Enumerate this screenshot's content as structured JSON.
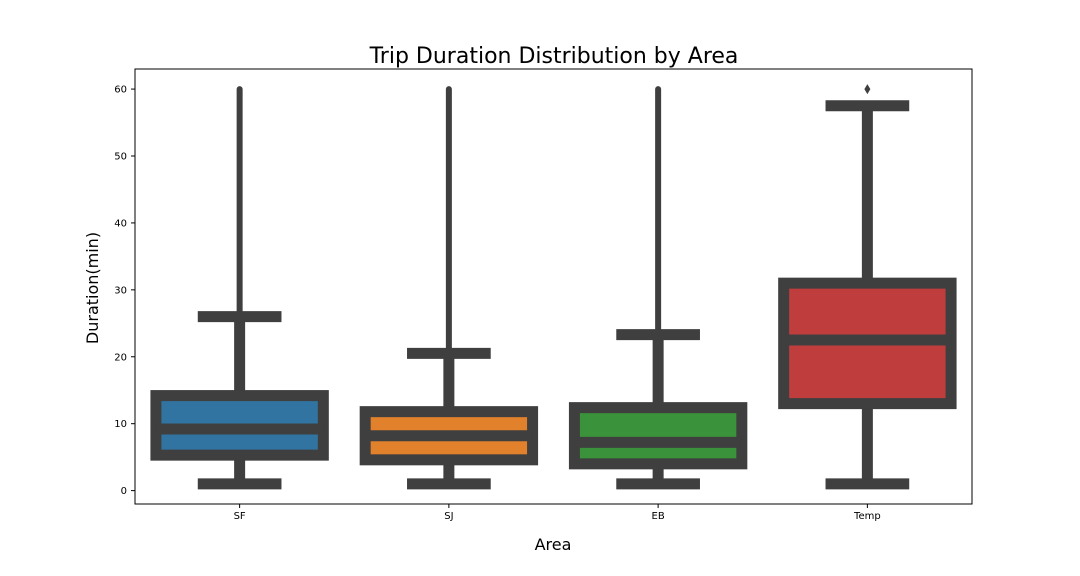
{
  "chart_data": {
    "type": "box",
    "title": "Trip Duration Distribution by Area",
    "xlabel": "Area",
    "ylabel": "Duration(min)",
    "ylim": [
      -2,
      63
    ],
    "yticks": [
      0,
      10,
      20,
      30,
      40,
      50,
      60
    ],
    "ytick_labels": [
      "0",
      "10",
      "20",
      "30",
      "40",
      "50",
      "60"
    ],
    "grid": false,
    "categories": [
      "SF",
      "SJ",
      "EB",
      "Temp"
    ],
    "boxes": [
      {
        "category": "SF",
        "color": "#3274a1",
        "whisker_low": 1,
        "q1": 5.3,
        "median": 9.2,
        "q3": 14.2,
        "whisker_high": 26,
        "outliers_min": 26,
        "outliers_max": 60
      },
      {
        "category": "SJ",
        "color": "#e1812c",
        "whisker_low": 1,
        "q1": 4.6,
        "median": 8.2,
        "q3": 11.8,
        "whisker_high": 20.5,
        "outliers_min": 20.5,
        "outliers_max": 60
      },
      {
        "category": "EB",
        "color": "#3a923a",
        "whisker_low": 1,
        "q1": 4.0,
        "median": 7.2,
        "q3": 12.4,
        "whisker_high": 23.3,
        "outliers_min": 23.3,
        "outliers_max": 60
      },
      {
        "category": "Temp",
        "color": "#c03d3e",
        "whisker_low": 1,
        "q1": 13.0,
        "median": 22.5,
        "q3": 31.0,
        "whisker_high": 57.5,
        "outliers_min": 60,
        "outliers_max": 60
      }
    ],
    "edge_color": "#3f3f3f"
  }
}
